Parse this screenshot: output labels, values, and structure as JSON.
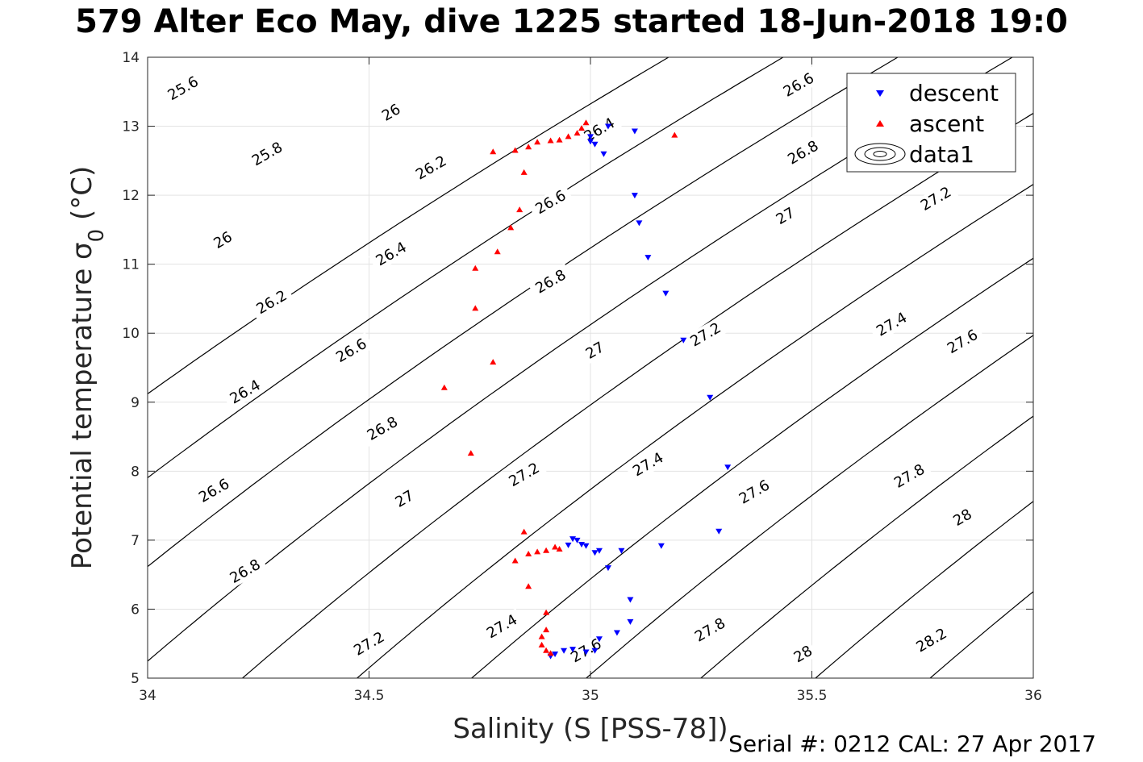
{
  "title": "579 Alter Eco May, dive 1225 started 18-Jun-2018 19:0",
  "footer": "Serial #: 0212  CAL: 27 Apr 2017",
  "chart_data": {
    "type": "scatter",
    "title": "579 Alter Eco May, dive 1225 started 18-Jun-2018 19:0",
    "xlabel": "Salinity (S [PSS-78])",
    "ylabel": "Potential temperature σ₀ (°C)",
    "xlim": [
      34,
      36
    ],
    "ylim": [
      5,
      14
    ],
    "xticks": [
      34,
      34.5,
      35,
      35.5,
      36
    ],
    "xtick_labels": [
      "34",
      "34.5",
      "35",
      "35.5",
      "36"
    ],
    "yticks": [
      5,
      6,
      7,
      8,
      9,
      10,
      11,
      12,
      13,
      14
    ],
    "ytick_labels": [
      "5",
      "6",
      "7",
      "8",
      "9",
      "10",
      "11",
      "12",
      "13",
      "14"
    ],
    "grid": true,
    "legend": {
      "position": "top-right",
      "entries": [
        "descent",
        "ascent",
        "data1"
      ]
    },
    "colors": {
      "descent": "#0000ff",
      "ascent": "#ff0000",
      "contour": "#000000"
    },
    "series": [
      {
        "name": "descent",
        "marker": "triangle-down",
        "points": [
          [
            35.04,
            13.0
          ],
          [
            35.0,
            12.85
          ],
          [
            35.0,
            12.78
          ],
          [
            35.01,
            12.74
          ],
          [
            35.03,
            12.6
          ],
          [
            35.1,
            12.93
          ],
          [
            35.1,
            12.0
          ],
          [
            35.11,
            11.6
          ],
          [
            35.13,
            11.1
          ],
          [
            35.17,
            10.58
          ],
          [
            35.21,
            9.9
          ],
          [
            35.27,
            9.07
          ],
          [
            35.31,
            8.06
          ],
          [
            35.29,
            7.13
          ],
          [
            35.16,
            6.92
          ],
          [
            35.07,
            6.85
          ],
          [
            35.02,
            6.85
          ],
          [
            35.01,
            6.82
          ],
          [
            34.99,
            6.92
          ],
          [
            34.98,
            6.94
          ],
          [
            34.97,
            7.0
          ],
          [
            34.96,
            7.02
          ],
          [
            34.95,
            6.93
          ],
          [
            35.04,
            6.6
          ],
          [
            35.09,
            6.14
          ],
          [
            35.09,
            5.82
          ],
          [
            35.06,
            5.66
          ],
          [
            35.02,
            5.57
          ],
          [
            35.01,
            5.4
          ],
          [
            34.99,
            5.38
          ],
          [
            34.96,
            5.42
          ],
          [
            34.94,
            5.4
          ],
          [
            34.92,
            5.35
          ],
          [
            34.91,
            5.32
          ]
        ]
      },
      {
        "name": "ascent",
        "marker": "triangle-up",
        "points": [
          [
            35.19,
            12.87
          ],
          [
            34.99,
            13.05
          ],
          [
            34.98,
            12.97
          ],
          [
            34.97,
            12.9
          ],
          [
            34.95,
            12.85
          ],
          [
            34.93,
            12.8
          ],
          [
            34.91,
            12.79
          ],
          [
            34.88,
            12.77
          ],
          [
            34.86,
            12.7
          ],
          [
            34.83,
            12.65
          ],
          [
            34.78,
            12.63
          ],
          [
            34.85,
            12.33
          ],
          [
            34.84,
            11.79
          ],
          [
            34.82,
            11.53
          ],
          [
            34.79,
            11.18
          ],
          [
            34.74,
            10.94
          ],
          [
            34.74,
            10.36
          ],
          [
            34.78,
            9.58
          ],
          [
            34.67,
            9.21
          ],
          [
            34.73,
            8.26
          ],
          [
            34.85,
            7.12
          ],
          [
            34.83,
            6.7
          ],
          [
            34.86,
            6.8
          ],
          [
            34.88,
            6.83
          ],
          [
            34.9,
            6.85
          ],
          [
            34.92,
            6.9
          ],
          [
            34.93,
            6.87
          ],
          [
            34.86,
            6.33
          ],
          [
            34.9,
            5.95
          ],
          [
            34.9,
            5.7
          ],
          [
            34.89,
            5.6
          ],
          [
            34.89,
            5.48
          ],
          [
            34.9,
            5.4
          ],
          [
            34.91,
            5.36
          ]
        ]
      }
    ],
    "contour_levels": [
      25.6,
      25.8,
      26,
      26.2,
      26.4,
      26.6,
      26.8,
      27,
      27.2,
      27.4,
      27.6,
      27.8,
      28,
      28.2
    ],
    "contour_labels": [
      {
        "label": "25.6",
        "at": [
          34.08,
          13.55
        ]
      },
      {
        "label": "25.8",
        "at": [
          34.27,
          12.6
        ]
      },
      {
        "label": "26",
        "at": [
          34.17,
          11.35
        ]
      },
      {
        "label": "26.2",
        "at": [
          34.28,
          10.45
        ]
      },
      {
        "label": "26.4",
        "at": [
          34.22,
          9.15
        ]
      },
      {
        "label": "26.6",
        "at": [
          34.15,
          7.72
        ]
      },
      {
        "label": "26.8",
        "at": [
          34.22,
          6.55
        ]
      },
      {
        "label": "26",
        "at": [
          34.55,
          13.2
        ]
      },
      {
        "label": "26.2",
        "at": [
          34.64,
          12.4
        ]
      },
      {
        "label": "26.4",
        "at": [
          34.55,
          11.15
        ]
      },
      {
        "label": "26.6",
        "at": [
          34.46,
          9.75
        ]
      },
      {
        "label": "26.8",
        "at": [
          34.53,
          8.62
        ]
      },
      {
        "label": "27",
        "at": [
          34.58,
          7.6
        ]
      },
      {
        "label": "27.2",
        "at": [
          34.5,
          5.5
        ]
      },
      {
        "label": "26.4",
        "at": [
          35.02,
          12.95
        ]
      },
      {
        "label": "26.6",
        "at": [
          34.91,
          11.9
        ]
      },
      {
        "label": "26.8",
        "at": [
          34.91,
          10.75
        ]
      },
      {
        "label": "27",
        "at": [
          35.01,
          9.75
        ]
      },
      {
        "label": "27.2",
        "at": [
          34.85,
          7.95
        ]
      },
      {
        "label": "27.4",
        "at": [
          34.8,
          5.75
        ]
      },
      {
        "label": "27.6",
        "at": [
          34.99,
          5.4
        ]
      },
      {
        "label": "26.6",
        "at": [
          35.47,
          13.6
        ]
      },
      {
        "label": "26.8",
        "at": [
          35.48,
          12.62
        ]
      },
      {
        "label": "27",
        "at": [
          35.44,
          11.7
        ]
      },
      {
        "label": "27.2",
        "at": [
          35.26,
          9.98
        ]
      },
      {
        "label": "27.4",
        "at": [
          35.13,
          8.1
        ]
      },
      {
        "label": "27.6",
        "at": [
          35.37,
          7.7
        ]
      },
      {
        "label": "27.8",
        "at": [
          35.27,
          5.7
        ]
      },
      {
        "label": "27.2",
        "at": [
          35.78,
          11.95
        ]
      },
      {
        "label": "27.4",
        "at": [
          35.68,
          10.13
        ]
      },
      {
        "label": "27.6",
        "at": [
          35.84,
          9.88
        ]
      },
      {
        "label": "27.8",
        "at": [
          35.72,
          7.93
        ]
      },
      {
        "label": "28",
        "at": [
          35.48,
          5.35
        ]
      },
      {
        "label": "28",
        "at": [
          35.84,
          7.33
        ]
      },
      {
        "label": "28.2",
        "at": [
          35.77,
          5.55
        ]
      }
    ]
  }
}
